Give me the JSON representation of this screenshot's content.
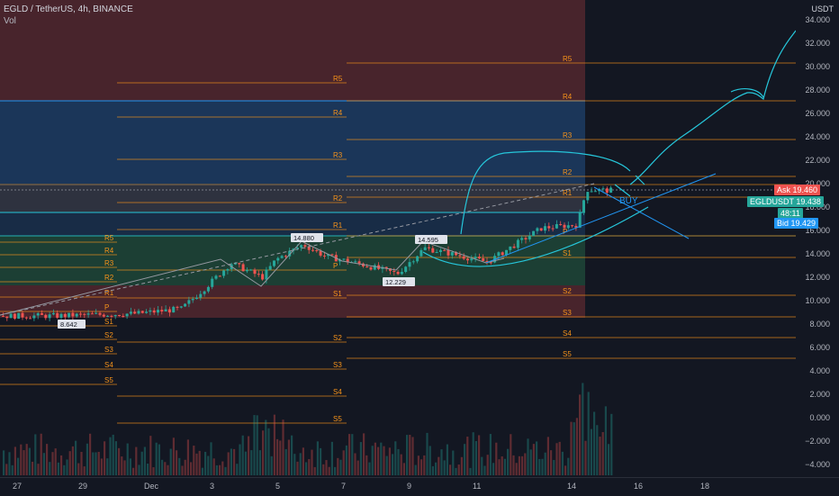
{
  "header": {
    "symbol_line": "EGLD / TetherUS, 4h, BINANCE",
    "vol_label": "Vol"
  },
  "price_axis": {
    "currency": "USDT",
    "ticks": [
      "34.000",
      "32.000",
      "30.000",
      "28.000",
      "26.000",
      "24.000",
      "22.000",
      "20.000",
      "18.000",
      "16.000",
      "14.000",
      "12.000",
      "10.000",
      "8.000",
      "6.000",
      "4.000",
      "2.000",
      "0.000",
      "−2.000",
      "−4.000"
    ]
  },
  "time_axis": {
    "labels": [
      "27",
      "29",
      "Dec",
      "3",
      "5",
      "7",
      "9",
      "11",
      "14",
      "16",
      "18"
    ]
  },
  "price_tags": {
    "ask_label": "Ask",
    "ask": "19.460",
    "symbol": "EGLDUSDT",
    "last": "19.438",
    "countdown": "48:11",
    "bid_label": "Bid",
    "bid": "19.429"
  },
  "pivot_sets": {
    "left": [
      "R5",
      "R4",
      "R3",
      "R2",
      "R1",
      "P",
      "S1",
      "S2",
      "S3",
      "S4",
      "S5"
    ],
    "middle": [
      "R5",
      "R4",
      "R3",
      "R2",
      "R1",
      "P",
      "S1",
      "S2",
      "S3",
      "S4",
      "S5"
    ],
    "right": [
      "R5",
      "R4",
      "R3",
      "R2",
      "R1",
      "P",
      "S1",
      "S2",
      "S3",
      "S4",
      "S5"
    ]
  },
  "annotations": {
    "high_1": "14.880",
    "high_2": "14.595",
    "low_1": "12.229",
    "low_2": "8.642",
    "buy_text": "BUY"
  },
  "colors": {
    "background": "#131722",
    "up": "#26a69a",
    "down": "#ef5350",
    "pivot": "#f7931a",
    "drawing": "#2196f3",
    "red_zone": "#5b2a30",
    "blue_zone": "#1d3a5f",
    "green_zone": "#1f4a3a"
  },
  "chart_data": {
    "type": "candlestick",
    "symbol": "EGLD / TetherUS",
    "interval": "4h",
    "exchange": "BINANCE",
    "ylim": [
      -5,
      35
    ],
    "last_price": 19.438,
    "ask": 19.46,
    "bid": 19.429,
    "marked_high_1": 14.88,
    "marked_high_2": 14.595,
    "marked_low_1": 12.229,
    "marked_low_2": 8.642
  }
}
